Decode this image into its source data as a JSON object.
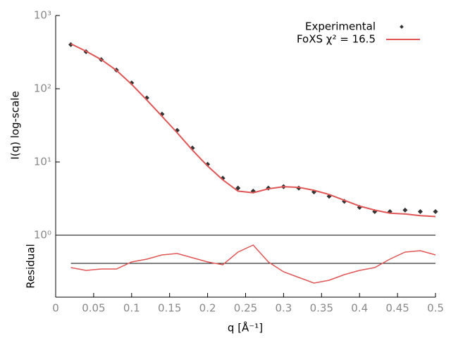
{
  "chart_data": [
    {
      "type": "line",
      "ylabel": "I(q) log-scale",
      "log_y": true,
      "ylim": [
        1,
        1000
      ],
      "yticks": [
        {
          "value": 1,
          "label": "10⁰"
        },
        {
          "value": 10,
          "label": "10¹"
        },
        {
          "value": 100,
          "label": "10²"
        },
        {
          "value": 1000,
          "label": "10³"
        }
      ],
      "xlim": [
        0,
        0.5
      ],
      "legend": "upper right",
      "x": [
        0.02,
        0.04,
        0.06,
        0.08,
        0.1,
        0.12,
        0.14,
        0.16,
        0.18,
        0.2,
        0.22,
        0.24,
        0.26,
        0.28,
        0.3,
        0.32,
        0.34,
        0.36,
        0.38,
        0.4,
        0.42,
        0.44,
        0.46,
        0.48,
        0.5
      ],
      "series": [
        {
          "name": "Experimental",
          "color": "#333333",
          "style": "points",
          "values": [
            400,
            320,
            250,
            180,
            120,
            75,
            45,
            27,
            15.5,
            9.3,
            6.0,
            4.4,
            4.0,
            4.4,
            4.6,
            4.4,
            3.9,
            3.4,
            2.9,
            2.4,
            2.1,
            2.1,
            2.2,
            2.1,
            2.1
          ]
        },
        {
          "name": "FoXS χ² = 16.5",
          "color": "#e05555",
          "style": "line",
          "values": [
            410,
            325,
            250,
            178,
            115,
            70,
            42,
            25,
            14.5,
            8.8,
            5.7,
            4.0,
            3.8,
            4.3,
            4.6,
            4.5,
            4.1,
            3.6,
            3.0,
            2.5,
            2.2,
            2.0,
            1.95,
            1.85,
            1.8
          ]
        }
      ]
    },
    {
      "type": "line",
      "ylabel": "Residual",
      "xlabel": "q [Å⁻¹]",
      "ylim": [
        -2.4,
        2.0
      ],
      "xlim": [
        0,
        0.5
      ],
      "xticks": [
        0,
        0.05,
        0.1,
        0.15,
        0.2,
        0.25,
        0.3,
        0.35,
        0.4,
        0.45,
        0.5
      ],
      "x": [
        0.02,
        0.04,
        0.06,
        0.08,
        0.1,
        0.12,
        0.14,
        0.16,
        0.18,
        0.2,
        0.22,
        0.24,
        0.26,
        0.28,
        0.3,
        0.32,
        0.34,
        0.36,
        0.38,
        0.4,
        0.42,
        0.44,
        0.46,
        0.48,
        0.5
      ],
      "series": [
        {
          "color": "#e05555",
          "values": [
            -0.3,
            -0.5,
            -0.4,
            -0.4,
            0.1,
            0.3,
            0.6,
            0.7,
            0.4,
            0.1,
            -0.1,
            0.8,
            1.3,
            0.1,
            -0.6,
            -1.0,
            -1.4,
            -1.2,
            -0.8,
            -0.5,
            -0.3,
            0.3,
            0.8,
            0.9,
            0.6
          ]
        }
      ]
    }
  ]
}
